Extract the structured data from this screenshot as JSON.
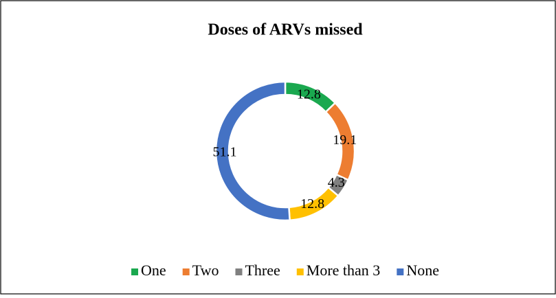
{
  "chart_data": {
    "type": "donut",
    "title": "Doses of ARVs missed",
    "categories": [
      "One",
      "Two",
      "Three",
      "More than 3",
      "None"
    ],
    "values": [
      12.8,
      19.1,
      4.3,
      12.8,
      51.1
    ],
    "colors": [
      "#1aa84f",
      "#ed7d31",
      "#808080",
      "#ffc000",
      "#4472c4"
    ],
    "legend": "bottom"
  }
}
